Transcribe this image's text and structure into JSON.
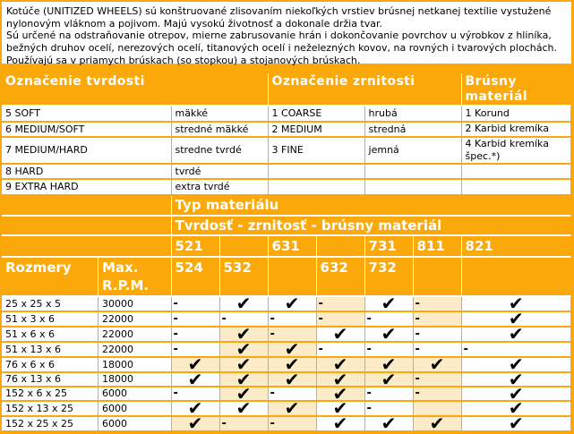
{
  "colors": {
    "orange": "#FBA80A",
    "shaded_cell": "#FDEAC6",
    "cell_background": "#FFFFFF",
    "text": "#000000",
    "header_text": "#FFFFFF"
  },
  "intro": {
    "lines": [
      "Kotúče (UNITIZED WHEELS) sú konštruované zlisovaním niekoľkých vrstiev brúsnej netkanej textílie vystužené",
      "nylonovým vláknom a pojivom. Majú vysokú životnosť a dokonale držia tvar.",
      "Sú určené na odstraňovanie otrepov, mierne zabrusovanie hrán i dokončovanie povrchov u výrobkov z hliníka,",
      "bežných druhov ocelí, nerezových ocelí, titanových ocelí i neželezných kovov, na rovných i tvarových plochách.",
      "Používajú sa v priamych brúskach (so stopkou) a stojanových brúskach."
    ]
  },
  "designations": {
    "hardness_header": "Označenie tvrdosti",
    "grit_header": "Označenie zrnitosti",
    "material_header": "Brúsny\nmateriál",
    "rows": [
      {
        "hardness": "5 SOFT",
        "hardness_desc": "mäkké",
        "grit": "1 COARSE",
        "grit_desc": "hrubá",
        "material": "1 Korund"
      },
      {
        "hardness": "6 MEDIUM/SOFT",
        "hardness_desc": "stredné mäkké",
        "grit": "2 MEDIUM",
        "grit_desc": "stredná",
        "material": "2 Karbid kremíka"
      },
      {
        "hardness": "7 MEDIUM/HARD",
        "hardness_desc": "stredne tvrdé",
        "grit": "3 FINE",
        "grit_desc": "jemná",
        "material": "4 Karbid kremíka špec.*)"
      },
      {
        "hardness": "8 HARD",
        "hardness_desc": "tvrdé",
        "grit": "",
        "grit_desc": "",
        "material": ""
      },
      {
        "hardness": "9 EXTRA HARD",
        "hardness_desc": "extra tvrdé",
        "grit": "",
        "grit_desc": "",
        "material": ""
      }
    ]
  },
  "products": {
    "type_header": "Typ materiálu",
    "combo_header": "Tvrdosť - zrnitosť - brúsny materiál",
    "code_row_top": [
      "521",
      "",
      "631",
      "",
      "731",
      "811",
      "821"
    ],
    "code_row_bottom": [
      "524",
      "532",
      "",
      "632",
      "732",
      "",
      ""
    ],
    "size_header": "Rozmery",
    "rpm_header": "Max.\nR.P.M.",
    "check_symbol": "✔",
    "dash_symbol": "-",
    "rows": [
      {
        "size": "25 x 25 x 5",
        "rpm": "30000",
        "marks": [
          "dash",
          "check",
          "check",
          "dash",
          "check",
          "dash",
          "check"
        ],
        "shaded": [
          false,
          false,
          false,
          true,
          false,
          true,
          false
        ]
      },
      {
        "size": "51 x 3 x 6",
        "rpm": "22000",
        "marks": [
          "dash",
          "dash",
          "dash",
          "dash",
          "dash",
          "dash",
          "check"
        ],
        "shaded": [
          false,
          false,
          false,
          true,
          false,
          true,
          false
        ]
      },
      {
        "size": "51 x 6 x 6",
        "rpm": "22000",
        "marks": [
          "dash",
          "check",
          "dash",
          "check",
          "check",
          "dash",
          "check"
        ],
        "shaded": [
          false,
          true,
          true,
          false,
          false,
          false,
          false
        ]
      },
      {
        "size": "51 x 13 x 6",
        "rpm": "22000",
        "marks": [
          "dash",
          "check",
          "check",
          "dash",
          "dash",
          "dash",
          "dash"
        ],
        "shaded": [
          false,
          true,
          true,
          false,
          false,
          false,
          false
        ]
      },
      {
        "size": "76 x 6 x 6",
        "rpm": "18000",
        "marks": [
          "check",
          "check",
          "check",
          "check",
          "check",
          "check",
          "check"
        ],
        "shaded": [
          true,
          true,
          true,
          true,
          true,
          true,
          false
        ]
      },
      {
        "size": "76 x 13 x 6",
        "rpm": "18000",
        "marks": [
          "check",
          "check",
          "check",
          "check",
          "check",
          "dash",
          "check"
        ],
        "shaded": [
          false,
          true,
          true,
          true,
          true,
          true,
          false
        ]
      },
      {
        "size": "152 x 6 x 25",
        "rpm": "6000",
        "marks": [
          "dash",
          "check",
          "dash",
          "check",
          "dash",
          "dash",
          "check"
        ],
        "shaded": [
          false,
          true,
          false,
          true,
          false,
          true,
          false
        ]
      },
      {
        "size": "152 x 13 x 25",
        "rpm": "6000",
        "marks": [
          "check",
          "check",
          "check",
          "check",
          "dash",
          "none",
          "check"
        ],
        "shaded": [
          false,
          false,
          true,
          false,
          false,
          true,
          false
        ]
      },
      {
        "size": "152 x 25 x 25",
        "rpm": "6000",
        "marks": [
          "check",
          "dash",
          "dash",
          "check",
          "check",
          "check",
          "check"
        ],
        "shaded": [
          true,
          true,
          true,
          false,
          false,
          true,
          false
        ]
      }
    ]
  }
}
